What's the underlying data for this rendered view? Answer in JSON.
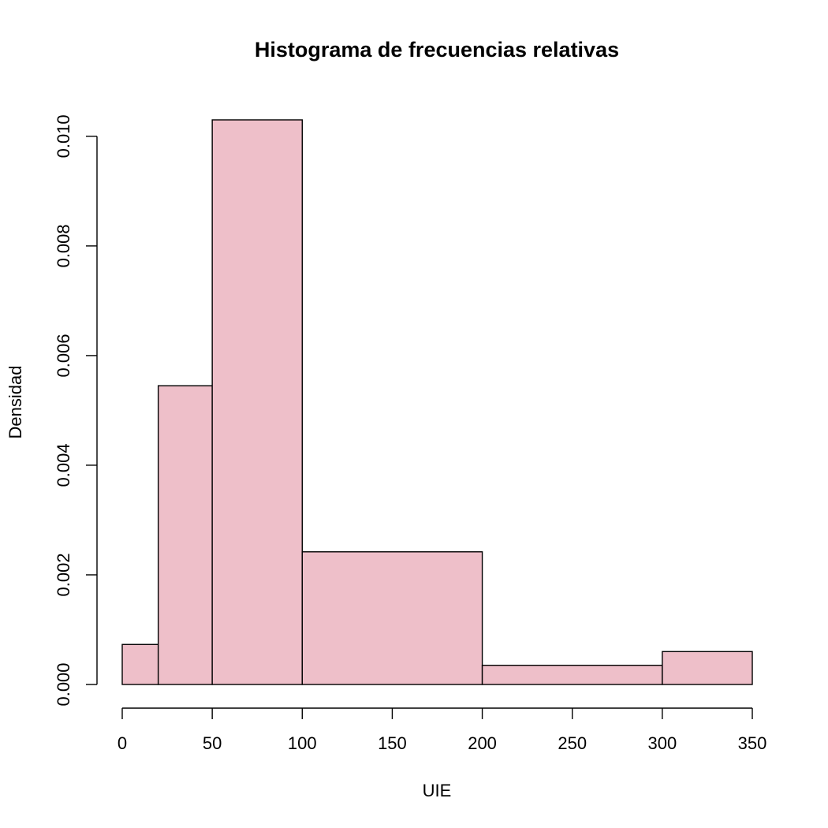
{
  "chart_data": {
    "type": "bar",
    "subtype": "histogram",
    "title": "Histograma de frecuencias relativas",
    "xlabel": "UIE",
    "ylabel": "Densidad",
    "bins": [
      {
        "x0": 0,
        "x1": 20,
        "density": 0.00073
      },
      {
        "x0": 20,
        "x1": 50,
        "density": 0.00545
      },
      {
        "x0": 50,
        "x1": 100,
        "density": 0.0103
      },
      {
        "x0": 100,
        "x1": 200,
        "density": 0.00242
      },
      {
        "x0": 200,
        "x1": 300,
        "density": 0.00035
      },
      {
        "x0": 300,
        "x1": 350,
        "density": 0.0006
      }
    ],
    "xlim": [
      0,
      350
    ],
    "ylim": [
      0,
      0.0103
    ],
    "x_ticks": [
      0,
      50,
      100,
      150,
      200,
      250,
      300,
      350
    ],
    "x_tick_labels": [
      "0",
      "50",
      "100",
      "150",
      "200",
      "250",
      "300",
      "350"
    ],
    "y_ticks": [
      0,
      0.002,
      0.004,
      0.006,
      0.008,
      0.01
    ],
    "y_tick_labels": [
      "0.000",
      "0.002",
      "0.004",
      "0.006",
      "0.008",
      "0.010"
    ],
    "bar_color": "#EEBFC9",
    "edge_color": "#000000",
    "grid": false,
    "legend": "none"
  }
}
